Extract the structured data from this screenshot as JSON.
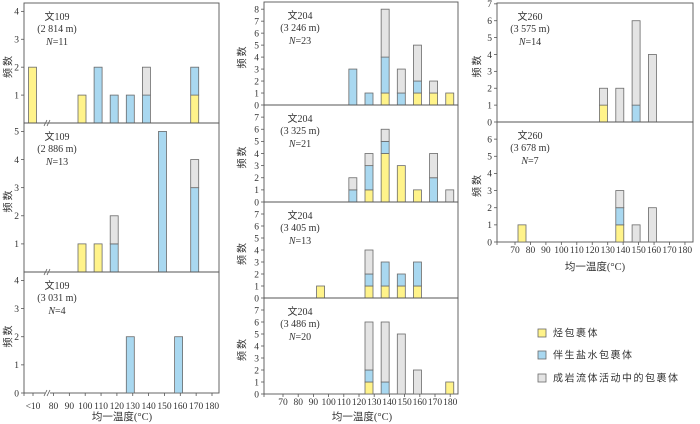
{
  "figure": {
    "y_axis_label": "频数",
    "x_axis_label": "均一温度(°C)",
    "axis_break_symbol": "//",
    "legend": [
      {
        "label": "烃包裹体",
        "color": "#FFF38A"
      },
      {
        "label": "伴生盐水包裹体",
        "color": "#A9D8F0"
      },
      {
        "label": "成岩流体活动中的包裹体",
        "color": "#E4E4E4"
      }
    ]
  },
  "chart_data": [
    {
      "type": "bar",
      "stacked": true,
      "panel_position": {
        "column": 0,
        "row": 0
      },
      "well": "文109",
      "depth": "(2 814 m)",
      "n_symbol": "N",
      "n_text": "=11",
      "n": 11,
      "xlabel": "均一温度(°C)",
      "ylabel": "频数",
      "ylim": [
        0,
        4.3
      ],
      "yticks": [
        1,
        2,
        3,
        4
      ],
      "xticks": [
        "<10",
        "80",
        "90",
        "100",
        "110",
        "120",
        "130",
        "140",
        "150",
        "160",
        "170",
        "180"
      ],
      "show_xtick_labels": false,
      "x_axis_break": true,
      "categories": [
        "<10",
        "100",
        "110",
        "120",
        "130",
        "140",
        "170"
      ],
      "series": [
        {
          "name": "烃包裹体",
          "values": [
            2,
            1,
            0,
            0,
            0,
            0,
            1
          ]
        },
        {
          "name": "伴生盐水包裹体",
          "values": [
            0,
            0,
            2,
            1,
            1,
            1,
            1
          ]
        },
        {
          "name": "成岩流体活动中的包裹体",
          "values": [
            0,
            0,
            0,
            0,
            0,
            1,
            0
          ]
        }
      ]
    },
    {
      "type": "bar",
      "stacked": true,
      "panel_position": {
        "column": 0,
        "row": 1
      },
      "well": "文109",
      "depth": "(2 886 m)",
      "n_symbol": "N",
      "n_text": "=13",
      "n": 13,
      "xlabel": "均一温度(°C)",
      "ylabel": "频数",
      "ylim": [
        0,
        5.3
      ],
      "yticks": [
        1,
        2,
        3,
        4,
        5
      ],
      "xticks": [
        "<10",
        "80",
        "90",
        "100",
        "110",
        "120",
        "130",
        "140",
        "150",
        "160",
        "170",
        "180"
      ],
      "show_xtick_labels": false,
      "x_axis_break": true,
      "categories": [
        "100",
        "110",
        "120",
        "150",
        "170"
      ],
      "series": [
        {
          "name": "烃包裹体",
          "values": [
            1,
            1,
            0,
            0,
            0
          ]
        },
        {
          "name": "伴生盐水包裹体",
          "values": [
            0,
            0,
            1,
            5,
            3
          ]
        },
        {
          "name": "成岩流体活动中的包裹体",
          "values": [
            0,
            0,
            1,
            0,
            1
          ]
        }
      ]
    },
    {
      "type": "bar",
      "stacked": true,
      "panel_position": {
        "column": 0,
        "row": 2
      },
      "well": "文109",
      "depth": "(3 031 m)",
      "n_symbol": "N",
      "n_text": "=4",
      "n": 4,
      "xlabel": "均一温度(°C)",
      "ylabel": "频数",
      "ylim": [
        0,
        4.3
      ],
      "yticks": [
        0,
        1,
        2,
        3,
        4
      ],
      "xticks": [
        "<10",
        "80",
        "90",
        "100",
        "110",
        "120",
        "130",
        "140",
        "150",
        "160",
        "170",
        "180"
      ],
      "show_xtick_labels": true,
      "x_axis_break": true,
      "categories": [
        "130",
        "160"
      ],
      "series": [
        {
          "name": "烃包裹体",
          "values": [
            0,
            0
          ]
        },
        {
          "name": "伴生盐水包裹体",
          "values": [
            2,
            2
          ]
        },
        {
          "name": "成岩流体活动中的包裹体",
          "values": [
            0,
            0
          ]
        }
      ]
    },
    {
      "type": "bar",
      "stacked": true,
      "panel_position": {
        "column": 1,
        "row": 0
      },
      "well": "文204",
      "depth": "(3 246 m)",
      "n_symbol": "N",
      "n_text": "=23",
      "n": 23,
      "xlabel": "均一温度(°C)",
      "ylabel": "频数",
      "ylim": [
        0,
        8.6
      ],
      "yticks": [
        0,
        1,
        2,
        3,
        4,
        5,
        6,
        7,
        8
      ],
      "xticks": [
        "70",
        "80",
        "90",
        "100",
        "110",
        "120",
        "130",
        "140",
        "150",
        "160",
        "170",
        "180"
      ],
      "show_xtick_labels": false,
      "x_axis_break": false,
      "categories": [
        "120",
        "130",
        "140",
        "150",
        "160",
        "170",
        "180"
      ],
      "series": [
        {
          "name": "烃包裹体",
          "values": [
            0,
            0,
            1,
            0,
            1,
            1,
            1
          ]
        },
        {
          "name": "伴生盐水包裹体",
          "values": [
            3,
            1,
            3,
            1,
            1,
            0,
            0
          ]
        },
        {
          "name": "成岩流体活动中的包裹体",
          "values": [
            0,
            0,
            4,
            2,
            3,
            1,
            0
          ]
        }
      ]
    },
    {
      "type": "bar",
      "stacked": true,
      "panel_position": {
        "column": 1,
        "row": 1
      },
      "well": "文204",
      "depth": "(3 325 m)",
      "n_symbol": "N",
      "n_text": "=21",
      "n": 21,
      "xlabel": "均一温度(°C)",
      "ylabel": "频数",
      "ylim": [
        0,
        8
      ],
      "yticks": [
        0,
        1,
        2,
        3,
        4,
        5,
        6,
        7
      ],
      "xticks": [
        "70",
        "80",
        "90",
        "100",
        "110",
        "120",
        "130",
        "140",
        "150",
        "160",
        "170",
        "180"
      ],
      "show_xtick_labels": false,
      "x_axis_break": false,
      "categories": [
        "120",
        "130",
        "140",
        "150",
        "160",
        "170",
        "180"
      ],
      "series": [
        {
          "name": "烃包裹体",
          "values": [
            0,
            1,
            4,
            3,
            1,
            0,
            0
          ]
        },
        {
          "name": "伴生盐水包裹体",
          "values": [
            1,
            2,
            1,
            0,
            0,
            2,
            0
          ]
        },
        {
          "name": "成岩流体活动中的包裹体",
          "values": [
            1,
            1,
            1,
            0,
            0,
            2,
            1
          ]
        }
      ]
    },
    {
      "type": "bar",
      "stacked": true,
      "panel_position": {
        "column": 1,
        "row": 2
      },
      "well": "文204",
      "depth": "(3 405 m)",
      "n_symbol": "N",
      "n_text": "=13",
      "n": 13,
      "xlabel": "均一温度(°C)",
      "ylabel": "频数",
      "ylim": [
        0,
        8
      ],
      "yticks": [
        0,
        1,
        2,
        3,
        4,
        5,
        6,
        7
      ],
      "xticks": [
        "70",
        "80",
        "90",
        "100",
        "110",
        "120",
        "130",
        "140",
        "150",
        "160",
        "170",
        "180"
      ],
      "show_xtick_labels": false,
      "x_axis_break": false,
      "categories": [
        "100",
        "130",
        "140",
        "150",
        "160"
      ],
      "series": [
        {
          "name": "烃包裹体",
          "values": [
            1,
            1,
            1,
            1,
            1
          ]
        },
        {
          "name": "伴生盐水包裹体",
          "values": [
            0,
            1,
            2,
            1,
            2
          ]
        },
        {
          "name": "成岩流体活动中的包裹体",
          "values": [
            0,
            2,
            0,
            0,
            0
          ]
        }
      ]
    },
    {
      "type": "bar",
      "stacked": true,
      "panel_position": {
        "column": 1,
        "row": 3
      },
      "well": "文204",
      "depth": "(3 486 m)",
      "n_symbol": "N",
      "n_text": "=20",
      "n": 20,
      "xlabel": "均一温度(°C)",
      "ylabel": "频数",
      "ylim": [
        0,
        8
      ],
      "yticks": [
        0,
        1,
        2,
        3,
        4,
        5,
        6,
        7
      ],
      "xticks": [
        "70",
        "80",
        "90",
        "100",
        "110",
        "120",
        "130",
        "140",
        "150",
        "160",
        "170",
        "180"
      ],
      "show_xtick_labels": true,
      "x_axis_break": false,
      "categories": [
        "130",
        "140",
        "150",
        "160",
        "180"
      ],
      "series": [
        {
          "name": "烃包裹体",
          "values": [
            1,
            0,
            0,
            0,
            1
          ]
        },
        {
          "name": "伴生盐水包裹体",
          "values": [
            1,
            1,
            0,
            0,
            0
          ]
        },
        {
          "name": "成岩流体活动中的包裹体",
          "values": [
            4,
            5,
            5,
            2,
            0
          ]
        }
      ]
    },
    {
      "type": "bar",
      "stacked": true,
      "panel_position": {
        "column": 2,
        "row": 0
      },
      "well": "文260",
      "depth": "(3 575 m)",
      "n_symbol": "N",
      "n_text": "=14",
      "n": 14,
      "xlabel": "均一温度(°C)",
      "ylabel": "频数",
      "ylim": [
        0,
        7.05
      ],
      "yticks": [
        0,
        1,
        2,
        3,
        4,
        5,
        6,
        7
      ],
      "xticks": [
        "70",
        "80",
        "90",
        "100",
        "110",
        "120",
        "130",
        "140",
        "150",
        "160",
        "170",
        "180"
      ],
      "show_xtick_labels": false,
      "x_axis_break": false,
      "categories": [
        "120",
        "130",
        "140",
        "150"
      ],
      "series": [
        {
          "name": "烃包裹体",
          "values": [
            1,
            0,
            0,
            0
          ]
        },
        {
          "name": "伴生盐水包裹体",
          "values": [
            0,
            0,
            1,
            0
          ]
        },
        {
          "name": "成岩流体活动中的包裹体",
          "values": [
            1,
            2,
            5,
            4
          ]
        }
      ]
    },
    {
      "type": "bar",
      "stacked": true,
      "panel_position": {
        "column": 2,
        "row": 1
      },
      "well": "文260",
      "depth": "(3 678 m)",
      "n_symbol": "N",
      "n_text": "=7",
      "n": 7,
      "xlabel": "均一温度(°C)",
      "ylabel": "频数",
      "ylim": [
        0,
        7
      ],
      "yticks": [
        0,
        1,
        2,
        3,
        4,
        5,
        6
      ],
      "xticks": [
        "70",
        "80",
        "90",
        "100",
        "110",
        "120",
        "130",
        "140",
        "150",
        "160",
        "170",
        "180"
      ],
      "show_xtick_labels": true,
      "x_axis_break": false,
      "categories": [
        "70",
        "130",
        "140",
        "150"
      ],
      "series": [
        {
          "name": "烃包裹体",
          "values": [
            1,
            1,
            0,
            0
          ]
        },
        {
          "name": "伴生盐水包裹体",
          "values": [
            0,
            1,
            0,
            0
          ]
        },
        {
          "name": "成岩流体活动中的包裹体",
          "values": [
            0,
            1,
            1,
            2
          ]
        }
      ]
    }
  ]
}
